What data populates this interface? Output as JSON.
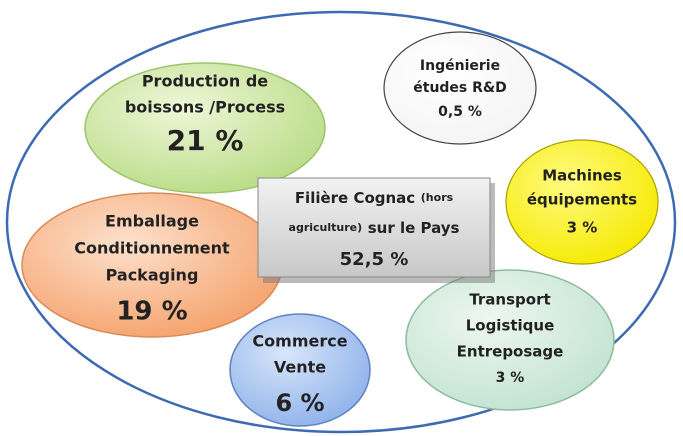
{
  "center": {
    "line1": "Filière Cognac",
    "line1_small": "(hors",
    "line2_small": "agriculture)",
    "line2": "sur le Pays",
    "value": "52,5 %"
  },
  "nodes": [
    {
      "lines": [
        "Production de",
        "boissons /Process"
      ],
      "value": "21 %"
    },
    {
      "lines": [
        "Ingénierie",
        "études R&D"
      ],
      "value": "0,5 %"
    },
    {
      "lines": [
        "Machines",
        "équipements"
      ],
      "value": "3 %"
    },
    {
      "lines": [
        "Emballage",
        "Conditionnement",
        "Packaging"
      ],
      "value": "19 %"
    },
    {
      "lines": [
        "Transport",
        "Logistique",
        "Entreposage"
      ],
      "value": "3 %"
    },
    {
      "lines": [
        "Commerce",
        "Vente"
      ],
      "value": "6 %"
    }
  ]
}
